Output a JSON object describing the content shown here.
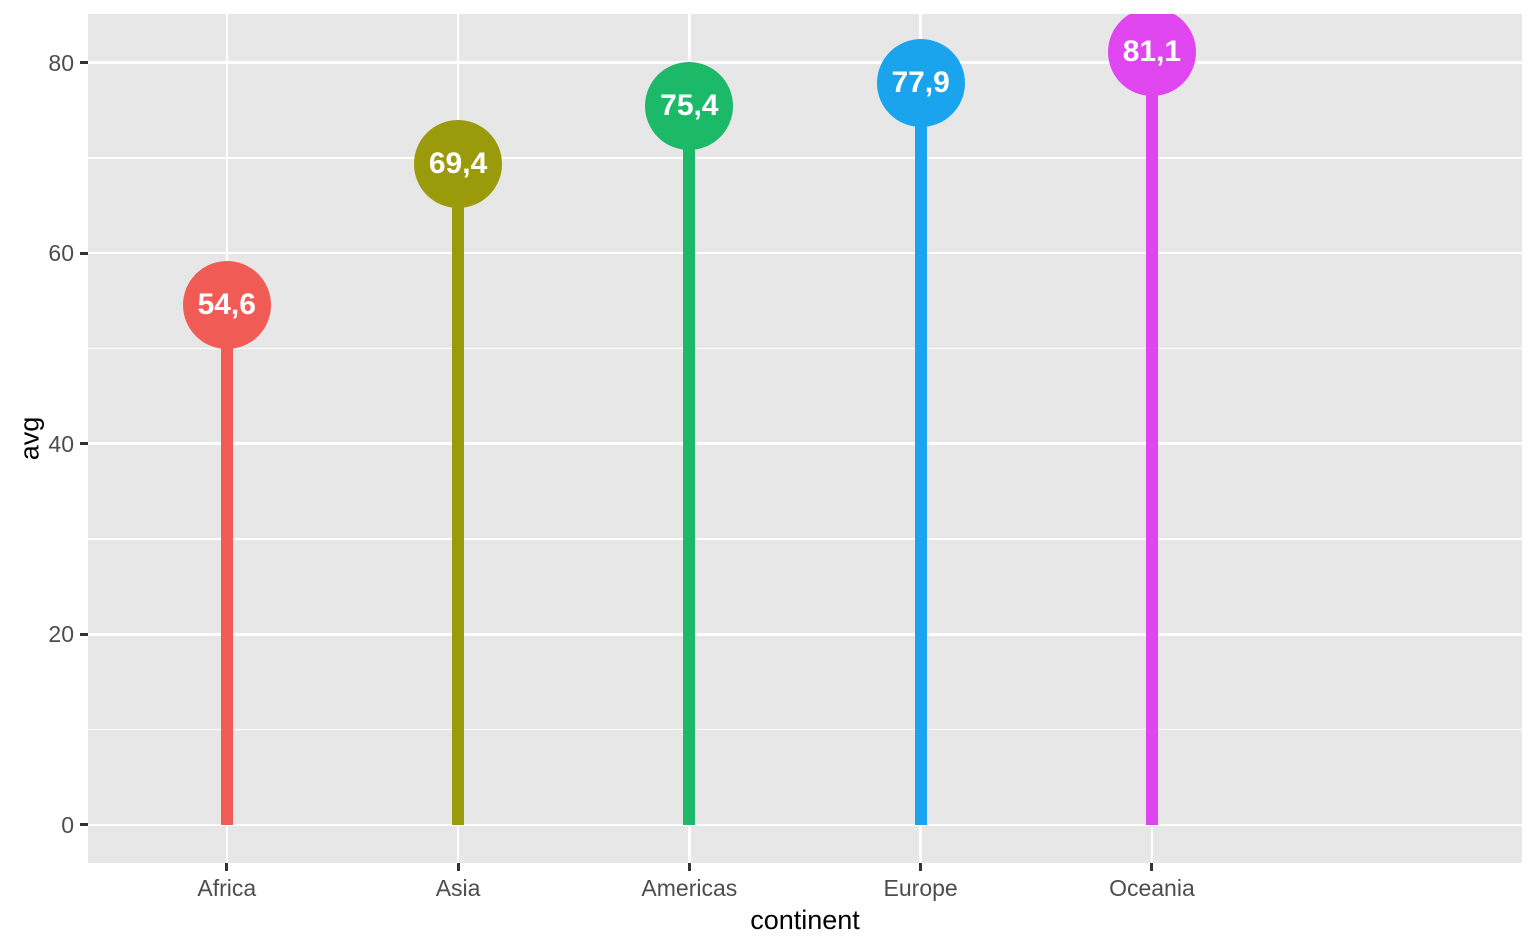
{
  "chart_data": {
    "type": "lollipop",
    "title": "",
    "xlabel": "continent",
    "ylabel": "avg",
    "categories": [
      "Africa",
      "Asia",
      "Americas",
      "Europe",
      "Oceania"
    ],
    "values": [
      54.6,
      69.4,
      75.4,
      77.9,
      81.1
    ],
    "value_labels": [
      "54,6",
      "69,4",
      "75,4",
      "77,9",
      "81,1"
    ],
    "colors": [
      "#F15B55",
      "#9A9A0B",
      "#1CBA68",
      "#1BA4EE",
      "#DF46EF"
    ],
    "ylim": [
      -4,
      85.1
    ],
    "yticks_major": [
      0,
      20,
      40,
      60,
      80
    ],
    "ytick_labels": [
      "0",
      "20",
      "40",
      "60",
      "80"
    ],
    "yticks_minor": [
      10,
      30,
      50,
      70
    ],
    "grid": "on",
    "legend_position": "none",
    "panel_background": "#E7E7E7",
    "grid_color": "#FFFFFF",
    "tick_mark_color": "#333333",
    "tick_label_color": "#4D4D4D",
    "axis_title_color": "#000000",
    "bubble_label_color": "#FFFFFF"
  }
}
